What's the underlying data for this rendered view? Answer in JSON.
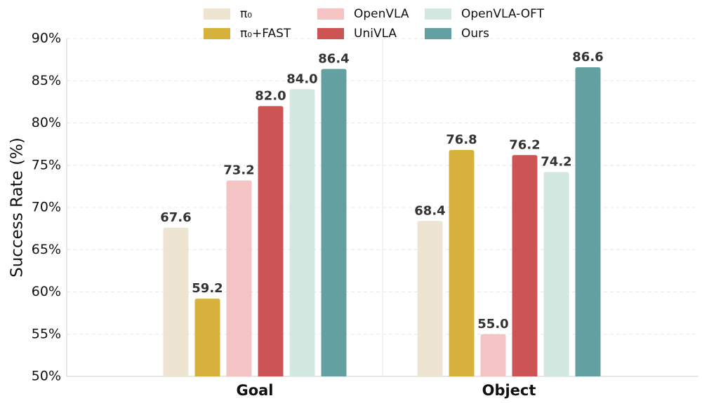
{
  "chart_data": {
    "type": "bar",
    "ylabel": "Success Rate (%)",
    "ylim": [
      50,
      90
    ],
    "yticks": [
      "50%",
      "55%",
      "60%",
      "65%",
      "70%",
      "75%",
      "80%",
      "85%",
      "90%"
    ],
    "categories": [
      "Goal",
      "Object"
    ],
    "grid": true,
    "legend_position": "top-center",
    "series": [
      {
        "name": "π₀",
        "color": "#ede4d2",
        "values": [
          67.6,
          68.4
        ],
        "labels": [
          "67.6",
          "68.4"
        ]
      },
      {
        "name": "π₀+FAST",
        "color": "#d6b13c",
        "values": [
          59.2,
          76.8
        ],
        "labels": [
          "59.2",
          "76.8"
        ]
      },
      {
        "name": "OpenVLA",
        "color": "#f4c4c4",
        "values": [
          73.2,
          55.0
        ],
        "labels": [
          "73.2",
          "55.0"
        ]
      },
      {
        "name": "UniVLA",
        "color": "#cc5454",
        "values": [
          82.0,
          76.2
        ],
        "labels": [
          "82.0",
          "76.2"
        ]
      },
      {
        "name": "OpenVLA-OFT",
        "color": "#d3e8e1",
        "values": [
          84.0,
          74.2
        ],
        "labels": [
          "84.0",
          "74.2"
        ]
      },
      {
        "name": "Ours",
        "color": "#62a0a1",
        "values": [
          86.4,
          86.6
        ],
        "labels": [
          "86.4",
          "86.6"
        ]
      }
    ]
  }
}
